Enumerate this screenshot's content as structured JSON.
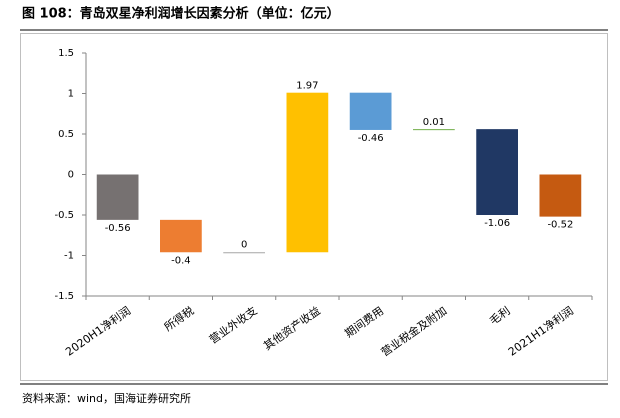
{
  "chart_data": {
    "type": "waterfall",
    "title": "图 108：青岛双星净利润增长因素分析（单位：亿元）",
    "source": "资料来源：wind，国海证券研究所",
    "categories": [
      "2020H1净利润",
      "所得税",
      "营业外收支",
      "其他资产收益",
      "期间费用",
      "营业税金及附加",
      "毛利",
      "2021H1净利润"
    ],
    "values": [
      -0.56,
      -0.4,
      0,
      1.97,
      -0.46,
      0.01,
      -1.06,
      -0.52
    ],
    "colors": [
      "#767171",
      "#ED7D31",
      "#A5A5A5",
      "#FFC000",
      "#5B9BD5",
      "#70AD47",
      "#203864",
      "#C55A11"
    ],
    "ylim": [
      -1.5,
      1.5
    ],
    "yticks": [
      1.5,
      1,
      0.5,
      0,
      -0.5,
      -1,
      -1.5
    ],
    "grid": false
  }
}
